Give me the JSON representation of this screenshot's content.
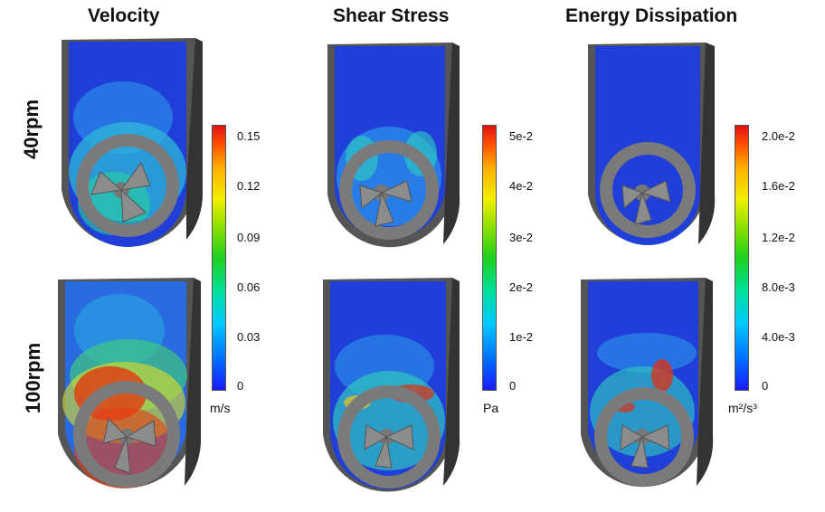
{
  "columns": [
    "Velocity",
    "Shear Stress",
    "Energy Dissipation"
  ],
  "rows": [
    "40rpm",
    "100rpm"
  ],
  "colorbars": [
    {
      "name": "velocity",
      "ticks": [
        "0.15",
        "0.12",
        "0.09",
        "0.06",
        "0.03",
        "0"
      ],
      "unit": "m/s"
    },
    {
      "name": "shear-stress",
      "ticks": [
        "5e-2",
        "4e-2",
        "3e-2",
        "2e-2",
        "1e-2",
        "0"
      ],
      "unit": "Pa"
    },
    {
      "name": "energy-dissipation",
      "ticks": [
        "2.0e-2",
        "1.6e-2",
        "1.2e-2",
        "8.0e-3",
        "4.0e-3",
        "0"
      ],
      "unit": "m²/s³"
    }
  ],
  "colors": {
    "low": "#1a1aff",
    "mid": "#20d020",
    "high": "#e01010",
    "vessel": "#5a5a5a",
    "impeller": "#8c8c8c"
  }
}
